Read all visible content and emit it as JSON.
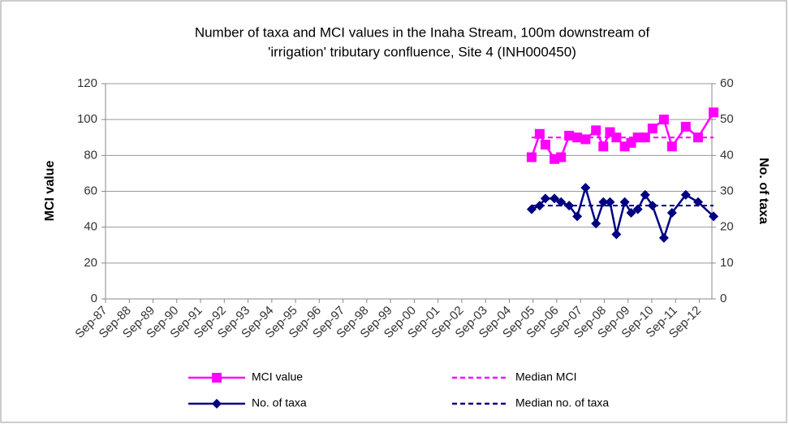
{
  "chart_data": {
    "type": "line",
    "title": [
      "Number of taxa and MCI values in the Inaha Stream, 100m downstream of",
      "'irrigation' tributary confluence, Site 4 (INH000450)"
    ],
    "ylabel": "MCI value",
    "y2label": "No. of taxa",
    "x": [
      2005.61,
      2005.95,
      2006.19,
      2006.57,
      2006.85,
      2007.19,
      2007.53,
      2007.88,
      2008.32,
      2008.63,
      2008.91,
      2009.18,
      2009.53,
      2009.8,
      2010.08,
      2010.39,
      2010.7,
      2011.18,
      2011.52,
      2012.1,
      2012.62,
      2013.27
    ],
    "series": [
      {
        "name": "MCI value",
        "color": "#ff00ff",
        "marker": "square",
        "dashed": false,
        "values": [
          79,
          92,
          86,
          78,
          79,
          91,
          90,
          89,
          94,
          85,
          93,
          90,
          85,
          87,
          90,
          90,
          95,
          100,
          85,
          96,
          90,
          104
        ]
      },
      {
        "name": "Median MCI",
        "color": "#ff00ff",
        "marker": null,
        "dashed": true,
        "values": [
          90,
          90,
          90,
          90,
          90,
          90,
          90,
          90,
          90,
          90,
          90,
          90,
          90,
          90,
          90,
          90,
          90,
          90,
          90,
          90,
          90,
          90
        ]
      },
      {
        "name": "No. of taxa",
        "color": "#000080",
        "marker": "diamond",
        "dashed": false,
        "axis": "y2",
        "values": [
          25,
          26,
          28,
          28,
          27,
          26,
          23,
          31,
          21,
          27,
          27,
          18,
          27,
          24,
          25,
          29,
          26,
          17,
          24,
          29,
          27,
          23
        ]
      },
      {
        "name": "Median no. of taxa",
        "color": "#000080",
        "marker": null,
        "dashed": true,
        "axis": "y2",
        "values": [
          26,
          26,
          26,
          26,
          26,
          26,
          26,
          26,
          26,
          26,
          26,
          26,
          26,
          26,
          26,
          26,
          26,
          26,
          26,
          26,
          26,
          26
        ]
      }
    ],
    "xlim": [
      1987.67,
      2013.2
    ],
    "xticks": [
      {
        "value": 1987.67,
        "label": "Sep-87"
      },
      {
        "value": 1988.67,
        "label": "Sep-88"
      },
      {
        "value": 1989.67,
        "label": "Sep-89"
      },
      {
        "value": 1990.67,
        "label": "Sep-90"
      },
      {
        "value": 1991.67,
        "label": "Sep-91"
      },
      {
        "value": 1992.67,
        "label": "Sep-92"
      },
      {
        "value": 1993.67,
        "label": "Sep-93"
      },
      {
        "value": 1994.67,
        "label": "Sep-94"
      },
      {
        "value": 1995.67,
        "label": "Sep-95"
      },
      {
        "value": 1996.67,
        "label": "Sep-96"
      },
      {
        "value": 1997.67,
        "label": "Sep-97"
      },
      {
        "value": 1998.67,
        "label": "Sep-98"
      },
      {
        "value": 1999.67,
        "label": "Sep-99"
      },
      {
        "value": 2000.67,
        "label": "Sep-00"
      },
      {
        "value": 2001.67,
        "label": "Sep-01"
      },
      {
        "value": 2002.67,
        "label": "Sep-02"
      },
      {
        "value": 2003.67,
        "label": "Sep-03"
      },
      {
        "value": 2004.67,
        "label": "Sep-04"
      },
      {
        "value": 2005.67,
        "label": "Sep-05"
      },
      {
        "value": 2006.67,
        "label": "Sep-06"
      },
      {
        "value": 2007.67,
        "label": "Sep-07"
      },
      {
        "value": 2008.67,
        "label": "Sep-08"
      },
      {
        "value": 2009.67,
        "label": "Sep-09"
      },
      {
        "value": 2010.67,
        "label": "Sep-10"
      },
      {
        "value": 2011.67,
        "label": "Sep-11"
      },
      {
        "value": 2012.67,
        "label": "Sep-12"
      }
    ],
    "ylim": [
      0,
      120
    ],
    "yticks": [
      0,
      20,
      40,
      60,
      80,
      100,
      120
    ],
    "y2lim": [
      0,
      60
    ],
    "y2ticks": [
      0,
      10,
      20,
      30,
      40,
      50,
      60
    ],
    "legend": "bottom"
  }
}
